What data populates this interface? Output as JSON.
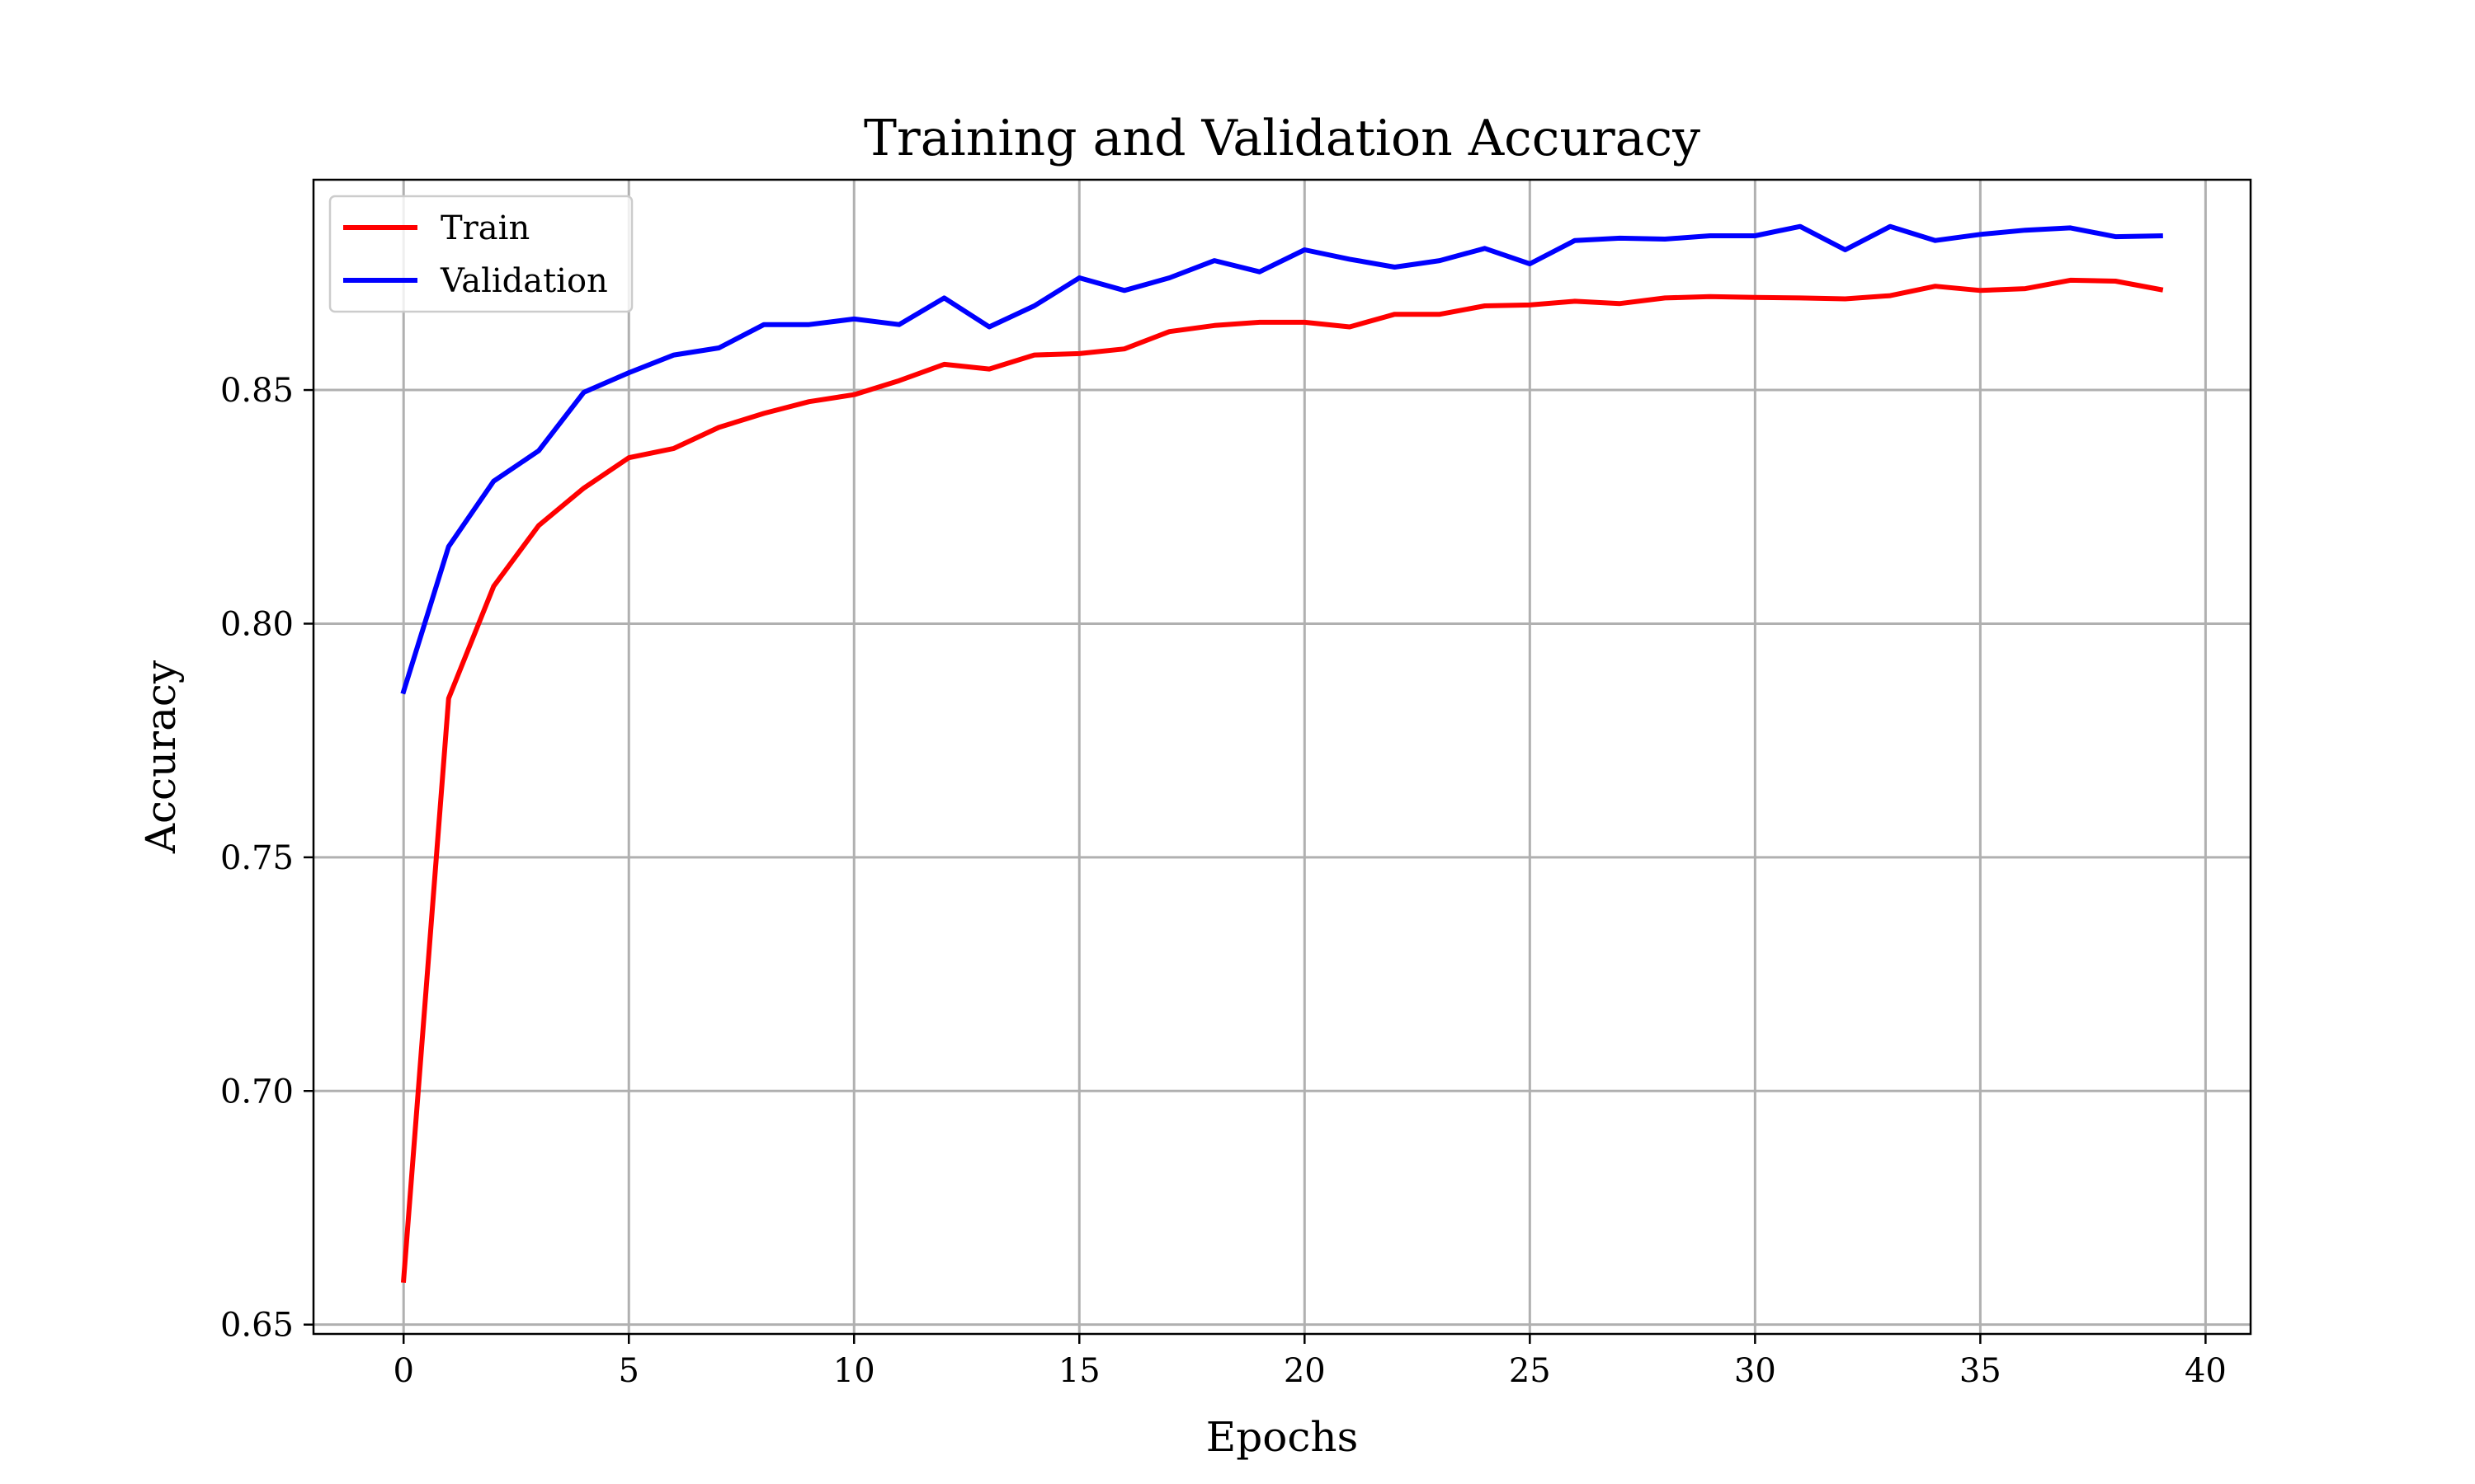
{
  "chart_data": {
    "type": "line",
    "title": "Training and Validation Accuracy",
    "xlabel": "Epochs",
    "ylabel": "Accuracy",
    "xlim": [
      -2,
      41
    ],
    "ylim": [
      0.648,
      0.895
    ],
    "x_ticks": [
      0,
      5,
      10,
      15,
      20,
      25,
      30,
      35,
      40
    ],
    "x_tick_labels": [
      "0",
      "5",
      "10",
      "15",
      "20",
      "25",
      "30",
      "35",
      "40"
    ],
    "y_ticks": [
      0.65,
      0.7,
      0.75,
      0.8,
      0.85
    ],
    "y_tick_labels": [
      "0.65",
      "0.70",
      "0.75",
      "0.80",
      "0.85"
    ],
    "grid": true,
    "legend_position": "top-left",
    "x": [
      0,
      1,
      2,
      3,
      4,
      5,
      6,
      7,
      8,
      9,
      10,
      11,
      12,
      13,
      14,
      15,
      16,
      17,
      18,
      19,
      20,
      21,
      22,
      23,
      24,
      25,
      26,
      27,
      28,
      29,
      30,
      31,
      32,
      33,
      34,
      35,
      36,
      37,
      38,
      39
    ],
    "series": [
      {
        "name": "Train",
        "color": "#ff0000",
        "values": [
          0.6595,
          0.784,
          0.808,
          0.821,
          0.829,
          0.8355,
          0.8375,
          0.842,
          0.845,
          0.8475,
          0.849,
          0.852,
          0.8555,
          0.8545,
          0.8575,
          0.8578,
          0.8588,
          0.8625,
          0.8638,
          0.8645,
          0.8645,
          0.8635,
          0.8662,
          0.8662,
          0.868,
          0.8682,
          0.869,
          0.8685,
          0.8697,
          0.87,
          0.8698,
          0.8697,
          0.8695,
          0.8702,
          0.8722,
          0.8713,
          0.8717,
          0.8735,
          0.8733,
          0.8715
        ]
      },
      {
        "name": "Validation",
        "color": "#0000ff",
        "values": [
          0.7855,
          0.8165,
          0.8305,
          0.837,
          0.8495,
          0.8537,
          0.8575,
          0.859,
          0.864,
          0.864,
          0.8652,
          0.864,
          0.8697,
          0.8635,
          0.868,
          0.874,
          0.8713,
          0.874,
          0.8777,
          0.8753,
          0.88,
          0.878,
          0.8763,
          0.8777,
          0.8803,
          0.877,
          0.882,
          0.8825,
          0.8823,
          0.883,
          0.883,
          0.885,
          0.88,
          0.885,
          0.882,
          0.8833,
          0.8842,
          0.8847,
          0.8828,
          0.883
        ]
      }
    ]
  }
}
